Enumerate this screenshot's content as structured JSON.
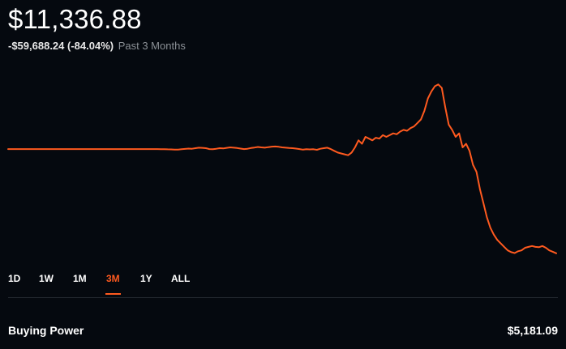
{
  "portfolio": {
    "balance": "$11,336.88",
    "change": "-$59,688.24 (-84.04%)",
    "period": "Past 3 Months"
  },
  "colors": {
    "accent": "#ff5a1f",
    "background": "#05090f",
    "muted": "#8b9096",
    "divider": "#22272e"
  },
  "ranges": {
    "items": [
      "1D",
      "1W",
      "1M",
      "3M",
      "1Y",
      "ALL"
    ],
    "selected": "3M"
  },
  "buying_power": {
    "label": "Buying Power",
    "value": "$5,181.09"
  },
  "chart_data": {
    "type": "line",
    "title": "",
    "xlabel": "",
    "ylabel": "",
    "grid": false,
    "series": [
      {
        "values": [
          71025,
          71025,
          71025,
          71025,
          71025,
          71025,
          71025,
          71025,
          71025,
          71025,
          71025,
          71025,
          71025,
          71025,
          71025,
          71025,
          71025,
          71025,
          71025,
          71025,
          71025,
          71025,
          71025,
          71025,
          71025,
          71025,
          71025,
          71025,
          71025,
          71025,
          71025,
          71025,
          71025,
          71025,
          71025,
          71025,
          71025,
          71025,
          71025,
          71025,
          71025,
          71025,
          71025,
          71000,
          70900,
          70950,
          70850,
          70800,
          70700,
          70750,
          70900,
          71100,
          71300,
          71200,
          71500,
          71800,
          71700,
          71500,
          71000,
          70900,
          71200,
          71500,
          71400,
          71700,
          72000,
          71800,
          71600,
          71300,
          71000,
          71200,
          71600,
          71900,
          72200,
          72000,
          71800,
          72100,
          72400,
          72500,
          72300,
          72000,
          71800,
          71600,
          71500,
          71300,
          71000,
          70700,
          70900,
          70800,
          70900,
          70600,
          71200,
          71500,
          71800,
          71000,
          70000,
          69000,
          68500,
          68000,
          67500,
          69000,
          72000,
          76000,
          74000,
          78000,
          77000,
          76000,
          77500,
          77000,
          79000,
          78000,
          79000,
          80000,
          79500,
          81000,
          82000,
          81500,
          83000,
          84000,
          86000,
          88000,
          93000,
          100000,
          104000,
          107000,
          108000,
          106000,
          95000,
          85000,
          82000,
          78000,
          80000,
          72000,
          74000,
          70000,
          62000,
          58000,
          48000,
          40000,
          32000,
          26000,
          22000,
          19000,
          17000,
          15000,
          13000,
          12000,
          11500,
          12500,
          13000,
          14500,
          15000,
          15500,
          15000,
          14800,
          15500,
          14500,
          13000,
          12200,
          11336.88
        ]
      }
    ],
    "ylim": [
      8000,
      110000
    ]
  }
}
